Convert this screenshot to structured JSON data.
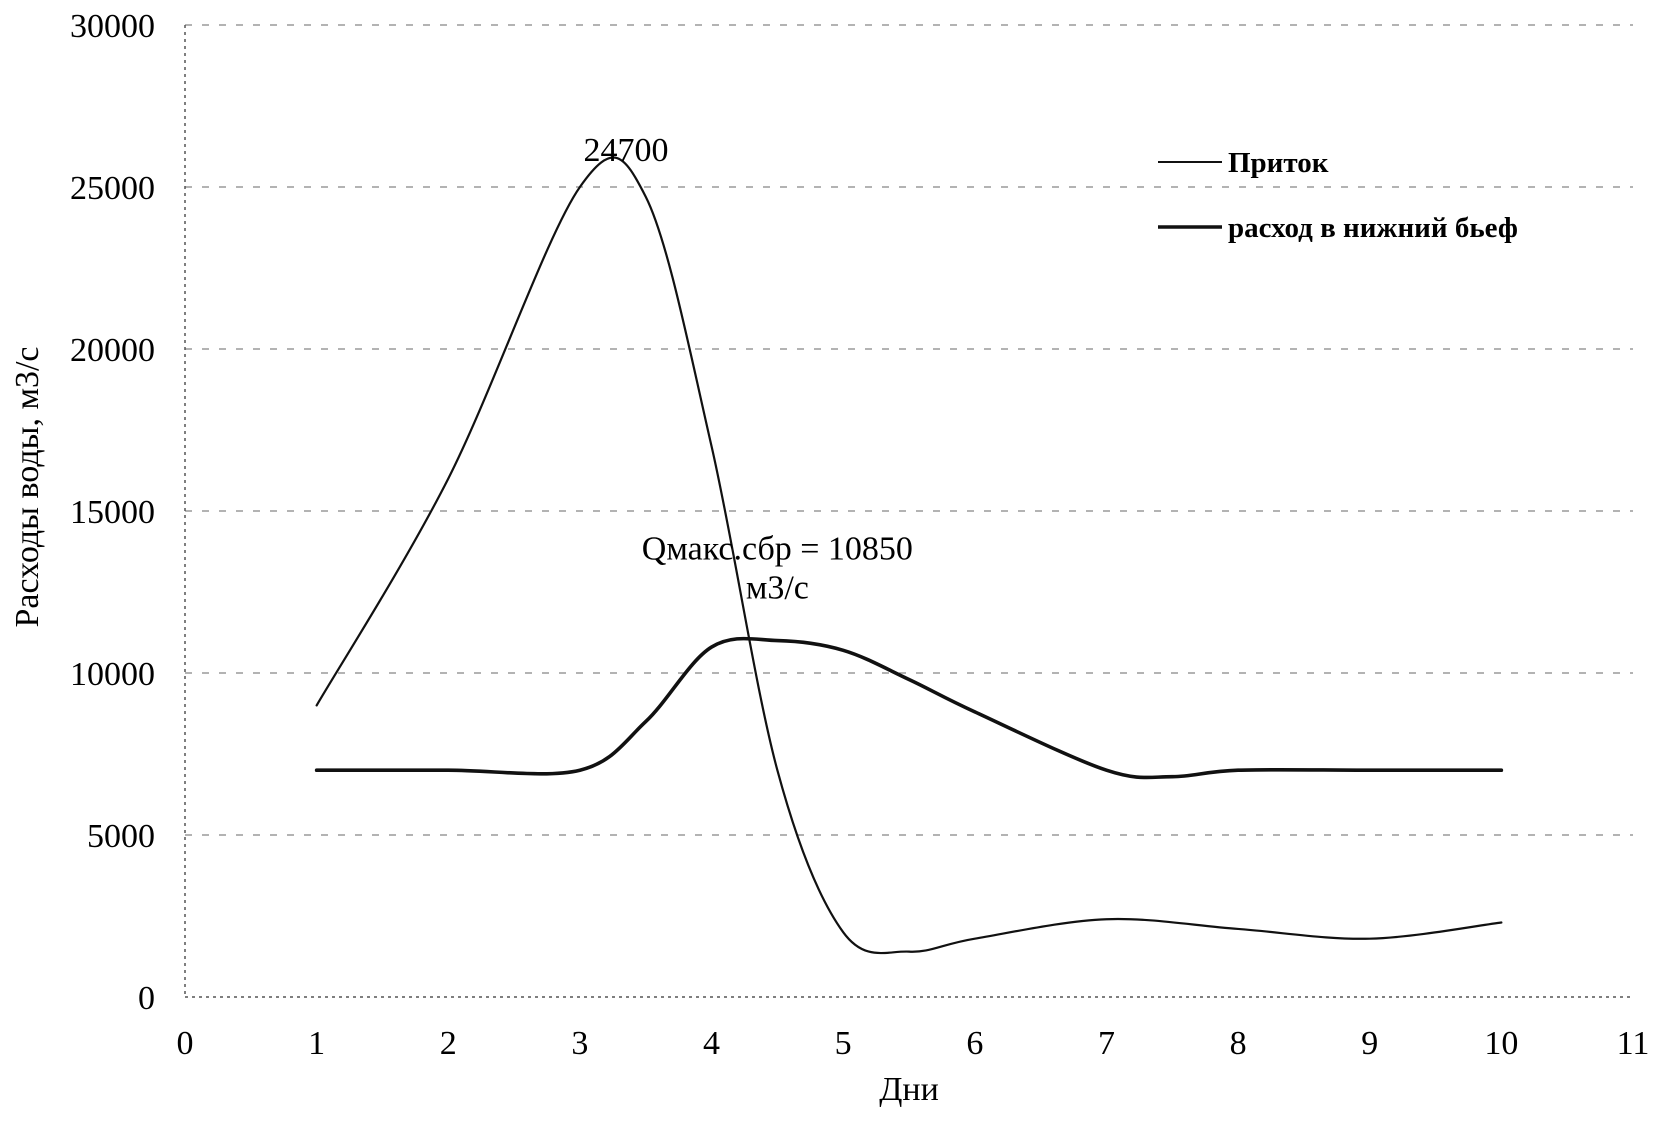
{
  "chart_data": {
    "type": "line",
    "title": "",
    "xlabel": "Дни",
    "ylabel": "Расходы воды, м3/с",
    "xlim": [
      0,
      11
    ],
    "ylim": [
      0,
      30000
    ],
    "x_ticks": [
      "0",
      "1",
      "2",
      "3",
      "4",
      "5",
      "6",
      "7",
      "8",
      "9",
      "10",
      "11"
    ],
    "y_ticks": [
      "0",
      "5000",
      "10000",
      "15000",
      "20000",
      "25000",
      "30000"
    ],
    "grid": true,
    "legend_position": "top-right",
    "series": [
      {
        "name": "Приток",
        "x": [
          1,
          2,
          3,
          3.5,
          4,
          4.5,
          5,
          5.5,
          6,
          7,
          8,
          9,
          10
        ],
        "y": [
          9000,
          16000,
          25000,
          24700,
          17000,
          7000,
          2000,
          1400,
          1800,
          2400,
          2100,
          1800,
          2300
        ]
      },
      {
        "name": "расход в нижний бьеф",
        "x": [
          1,
          2,
          3,
          3.5,
          4,
          4.5,
          5,
          5.5,
          6,
          7,
          7.5,
          8,
          9,
          10
        ],
        "y": [
          7000,
          7000,
          7000,
          8500,
          10800,
          11000,
          10700,
          9800,
          8800,
          7000,
          6800,
          7000,
          7000,
          7000
        ]
      }
    ],
    "annotations": [
      {
        "text": "24700",
        "x": 3.35,
        "y": 25800
      },
      {
        "text": "Qмакс.сбр = 10850",
        "x": 4.5,
        "y": 13500
      },
      {
        "text": "м3/с",
        "x": 4.5,
        "y": 12300
      }
    ]
  }
}
